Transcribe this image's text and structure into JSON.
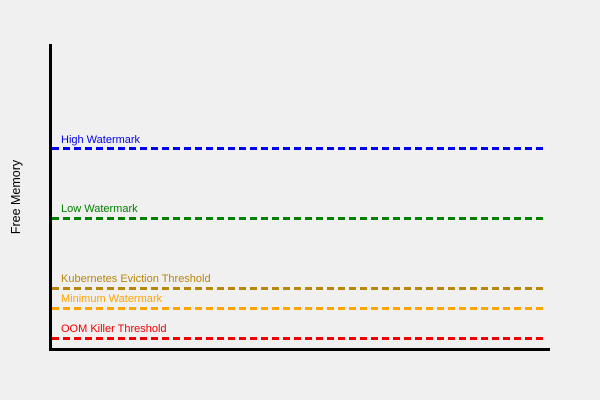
{
  "chart_data": {
    "type": "line",
    "title": "",
    "xlabel": "",
    "ylabel": "Free Memory",
    "background": "#f0f0f0",
    "axis_color": "#000000",
    "x_axis": {
      "ticks": [],
      "tick_labels": [],
      "visible": true
    },
    "y_axis": {
      "ticks": [],
      "tick_labels": [],
      "visible": true
    },
    "ylim": [
      0,
      1
    ],
    "xlim": [
      0,
      1
    ],
    "grid": false,
    "legend": "none",
    "line_style": "dashed",
    "series": [
      {
        "label": "High Watermark",
        "color": "#0000ee",
        "level": 0.657,
        "style": "dashed",
        "label_position": "above-left"
      },
      {
        "label": "Low Watermark",
        "color": "#008000",
        "level": 0.431,
        "style": "dashed",
        "label_position": "above-left"
      },
      {
        "label": "Kubernetes Eviction Threshold",
        "color": "#b8860b",
        "level": 0.201,
        "style": "dashed",
        "label_position": "above-left"
      },
      {
        "label": "Minimum Watermark",
        "color": "#ffa500",
        "level": 0.136,
        "style": "dashed",
        "label_position": "above-left"
      },
      {
        "label": "OOM Killer Threshold",
        "color": "#ee0000",
        "level": 0.038,
        "style": "dashed",
        "label_position": "above-left"
      }
    ]
  },
  "layout_hints": {
    "note": "horizontal dashed threshold lines spanning plot width, text label above-left of each line in matching color"
  }
}
